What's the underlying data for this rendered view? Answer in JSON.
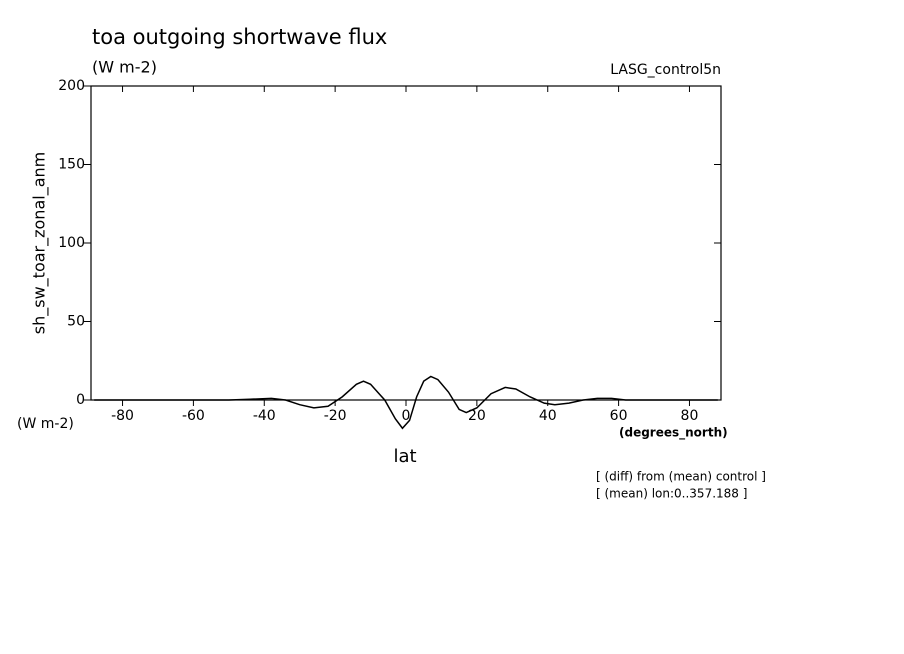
{
  "chart_data": {
    "type": "line",
    "title": "toa outgoing shortwave flux",
    "subtitle": "(W m-2)",
    "dataset": "LASG_control5n",
    "y_label": "sh_sw_toar_zonal_anm",
    "y_units": "(W m-2)",
    "x_label": "lat",
    "x_units": "(degrees_north)",
    "annotations": [
      "[ (diff) from (mean) control ]",
      "[ (mean) lon:0..357.188 ]"
    ],
    "x": [
      -88,
      -80,
      -70,
      -60,
      -50,
      -44,
      -38,
      -34,
      -30,
      -26,
      -22,
      -18,
      -14,
      -12,
      -10,
      -6,
      -3,
      -1,
      1,
      3,
      5,
      7,
      9,
      12,
      15,
      17,
      20,
      24,
      28,
      31,
      35,
      39,
      42,
      46,
      50,
      54,
      58,
      62,
      70,
      80,
      88
    ],
    "series": [
      {
        "name": "sh_sw_toar_zonal_anm",
        "color": "#000000",
        "values": [
          0,
          0,
          0,
          0,
          0,
          0.5,
          1,
          0,
          -3,
          -5,
          -4,
          2,
          10,
          12,
          10,
          0,
          -12,
          -18,
          -13,
          2,
          12,
          15,
          13,
          5,
          -6,
          -8,
          -5,
          4,
          8,
          7,
          2,
          -2,
          -3,
          -2,
          0,
          1,
          1,
          0,
          0,
          0,
          0
        ]
      }
    ],
    "xlim": [
      -88.9,
      88.9
    ],
    "ylim": [
      0,
      200
    ],
    "xticks": [
      -80,
      -60,
      -40,
      -20,
      0,
      20,
      40,
      60,
      80
    ],
    "yticks": [
      0,
      50,
      100,
      150,
      200
    ]
  }
}
